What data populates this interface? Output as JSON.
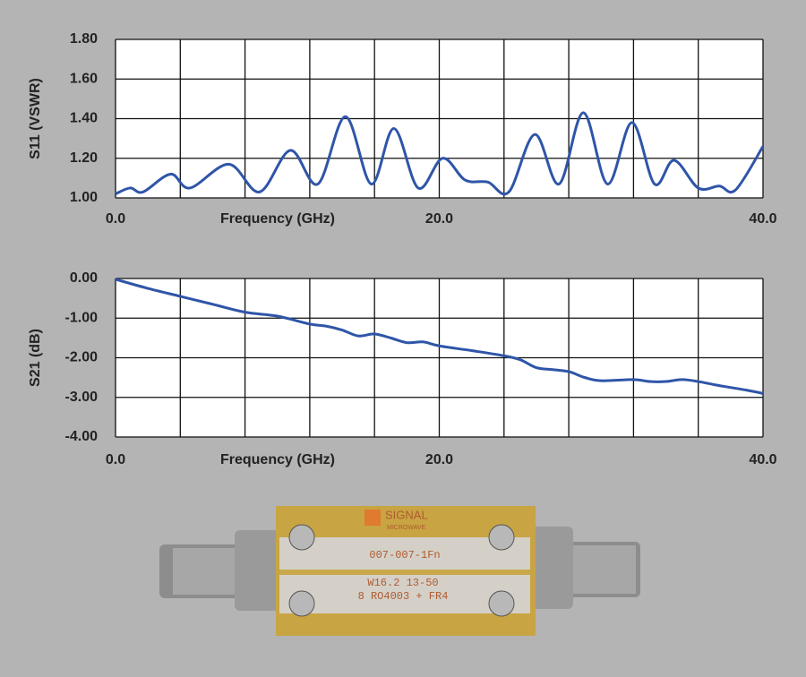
{
  "chart_data": [
    {
      "type": "line",
      "ylabel": "S11 (VSWR)",
      "xlabel": "Frequency (GHz)",
      "x": [
        0,
        0.9,
        1.7,
        3.4,
        4.6,
        7.0,
        8.9,
        10.8,
        12.5,
        14.2,
        15.8,
        17.2,
        18.7,
        20.2,
        21.6,
        23.0,
        24.3,
        25.9,
        27.4,
        28.9,
        30.4,
        31.9,
        33.3,
        34.5,
        36.0,
        37.3,
        38.3,
        40
      ],
      "series": [
        {
          "color": "#2f55a8",
          "values": [
            1.02,
            1.05,
            1.03,
            1.12,
            1.05,
            1.17,
            1.03,
            1.24,
            1.07,
            1.41,
            1.07,
            1.35,
            1.05,
            1.2,
            1.09,
            1.08,
            1.03,
            1.32,
            1.07,
            1.43,
            1.07,
            1.38,
            1.07,
            1.19,
            1.05,
            1.06,
            1.04,
            1.26
          ]
        }
      ],
      "xlim": [
        0,
        40
      ],
      "xticks": [
        {
          "value": 0,
          "label": "0.0"
        },
        {
          "value": 20,
          "label": "20.0"
        },
        {
          "value": 40,
          "label": "40.0"
        }
      ],
      "x_gridlines": [
        0,
        4,
        8,
        12,
        16,
        20,
        24,
        28,
        32,
        36,
        40
      ],
      "ylim": [
        1.0,
        1.8
      ],
      "yticks": [
        {
          "value": 1.0,
          "label": "1.00"
        },
        {
          "value": 1.2,
          "label": "1.20"
        },
        {
          "value": 1.4,
          "label": "1.40"
        },
        {
          "value": 1.6,
          "label": "1.60"
        },
        {
          "value": 1.8,
          "label": "1.80"
        }
      ],
      "grid": true
    },
    {
      "type": "line",
      "ylabel": "S21 (dB)",
      "xlabel": "Frequency (GHz)",
      "x": [
        0,
        2,
        4,
        6,
        8,
        10,
        12,
        13,
        14,
        15,
        16,
        17,
        18,
        19,
        20,
        22,
        24,
        25,
        26,
        27,
        28,
        29,
        30,
        32,
        33,
        34,
        35,
        36,
        37,
        38,
        39,
        40
      ],
      "series": [
        {
          "color": "#2f55a8",
          "values": [
            -0.02,
            -0.25,
            -0.45,
            -0.65,
            -0.85,
            -0.95,
            -1.15,
            -1.2,
            -1.3,
            -1.45,
            -1.4,
            -1.5,
            -1.62,
            -1.6,
            -1.7,
            -1.82,
            -1.95,
            -2.05,
            -2.25,
            -2.3,
            -2.35,
            -2.5,
            -2.58,
            -2.55,
            -2.6,
            -2.6,
            -2.55,
            -2.6,
            -2.68,
            -2.75,
            -2.82,
            -2.9
          ]
        }
      ],
      "xlim": [
        0,
        40
      ],
      "xticks": [
        {
          "value": 0,
          "label": "0.0"
        },
        {
          "value": 20,
          "label": "20.0"
        },
        {
          "value": 40,
          "label": "40.0"
        }
      ],
      "x_gridlines": [
        0,
        4,
        8,
        12,
        16,
        20,
        24,
        28,
        32,
        36,
        40
      ],
      "ylim": [
        -4.0,
        0.0
      ],
      "yticks": [
        {
          "value": 0.0,
          "label": "0.00"
        },
        {
          "value": -1.0,
          "label": "-1.00"
        },
        {
          "value": -2.0,
          "label": "-2.00"
        },
        {
          "value": -3.0,
          "label": "-3.00"
        },
        {
          "value": -4.0,
          "label": "-4.00"
        }
      ],
      "grid": true
    }
  ],
  "photo": {
    "brand": "SIGNAL",
    "brand_sub": "MICROWAVE",
    "part_number": "007-007-1Fn",
    "line1": "W16.2 13-50",
    "line2": "8 RO4003 + FR4"
  }
}
